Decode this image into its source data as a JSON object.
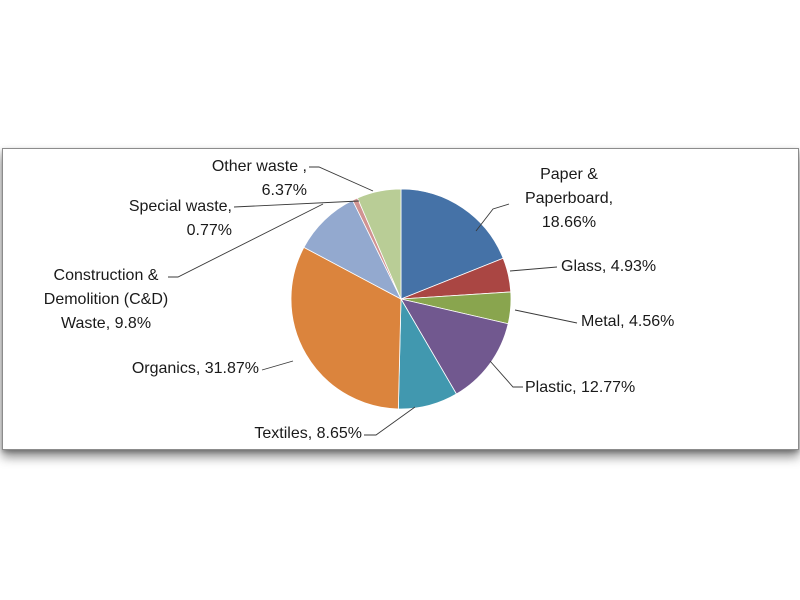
{
  "chart_data": {
    "type": "pie",
    "start_angle_deg": 0,
    "direction": "clockwise",
    "legend": "none",
    "slices": [
      {
        "label": "Paper & Paperboard",
        "value": 18.66,
        "text": [
          "Paper &",
          "Paperboard,",
          "18.66%"
        ],
        "color": "#4572A7"
      },
      {
        "label": "Glass",
        "value": 4.93,
        "text": [
          "Glass, 4.93%"
        ],
        "color": "#AA4643"
      },
      {
        "label": "Metal",
        "value": 4.56,
        "text": [
          "Metal, 4.56%"
        ],
        "color": "#89A54E"
      },
      {
        "label": "Plastic",
        "value": 12.77,
        "text": [
          "Plastic, 12.77%"
        ],
        "color": "#71588F"
      },
      {
        "label": "Textiles",
        "value": 8.65,
        "text": [
          "Textiles, 8.65%"
        ],
        "color": "#4198AF"
      },
      {
        "label": "Organics",
        "value": 31.87,
        "text": [
          "Organics, 31.87%"
        ],
        "color": "#DB843D"
      },
      {
        "label": "Construction & Demolition (C&D) Waste",
        "value": 9.8,
        "text": [
          "Construction &",
          "Demolition (C&D)",
          "Waste, 9.8%"
        ],
        "color": "#93A9CF"
      },
      {
        "label": "Special waste",
        "value": 0.77,
        "text": [
          "Special waste,",
          "0.77%"
        ],
        "color": "#D19392"
      },
      {
        "label": "Other waste",
        "value": 6.37,
        "text": [
          "Other waste ,",
          "6.37%"
        ],
        "color": "#B9CD96"
      }
    ]
  }
}
